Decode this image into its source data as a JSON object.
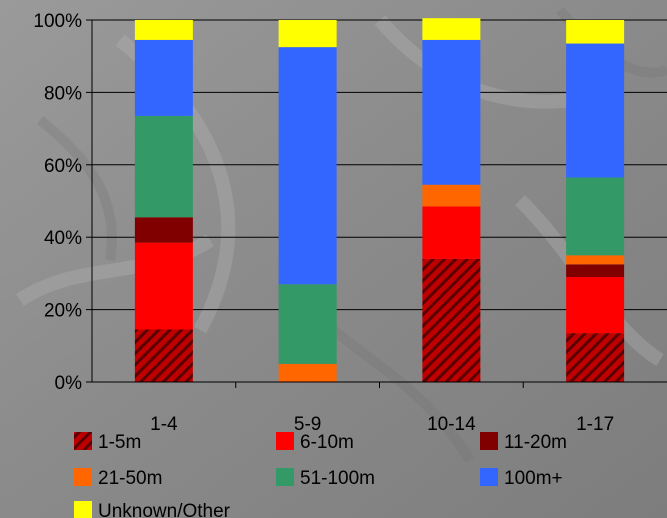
{
  "chart_data": {
    "type": "bar",
    "stacked": true,
    "percent": true,
    "categories": [
      "1-4",
      "5-9",
      "10-14",
      "1-17"
    ],
    "series": [
      {
        "name": "1-5m",
        "color": "#c00000",
        "pattern": "diagonal-hatch",
        "values": [
          14.5,
          0,
          34,
          13.5
        ]
      },
      {
        "name": "6-10m",
        "color": "#ff0000",
        "values": [
          24,
          0,
          14.5,
          15.5
        ]
      },
      {
        "name": "11-20m",
        "color": "#800000",
        "values": [
          7,
          0,
          0,
          3.5
        ]
      },
      {
        "name": "21-50m",
        "color": "#ff6600",
        "values": [
          0,
          5,
          6,
          2.5
        ]
      },
      {
        "name": "51-100m",
        "color": "#339966",
        "values": [
          28,
          22,
          0,
          21.5
        ]
      },
      {
        "name": "100m+",
        "color": "#3366ff",
        "values": [
          21,
          65.5,
          40,
          37
        ]
      },
      {
        "name": "Unknown/Other",
        "color": "#ffff00",
        "values": [
          5.5,
          7.5,
          6,
          6.5
        ]
      }
    ],
    "y_ticks": [
      "0%",
      "20%",
      "40%",
      "60%",
      "80%",
      "100%"
    ],
    "ylim": [
      0,
      100
    ],
    "grid": true,
    "legend_position": "bottom"
  }
}
